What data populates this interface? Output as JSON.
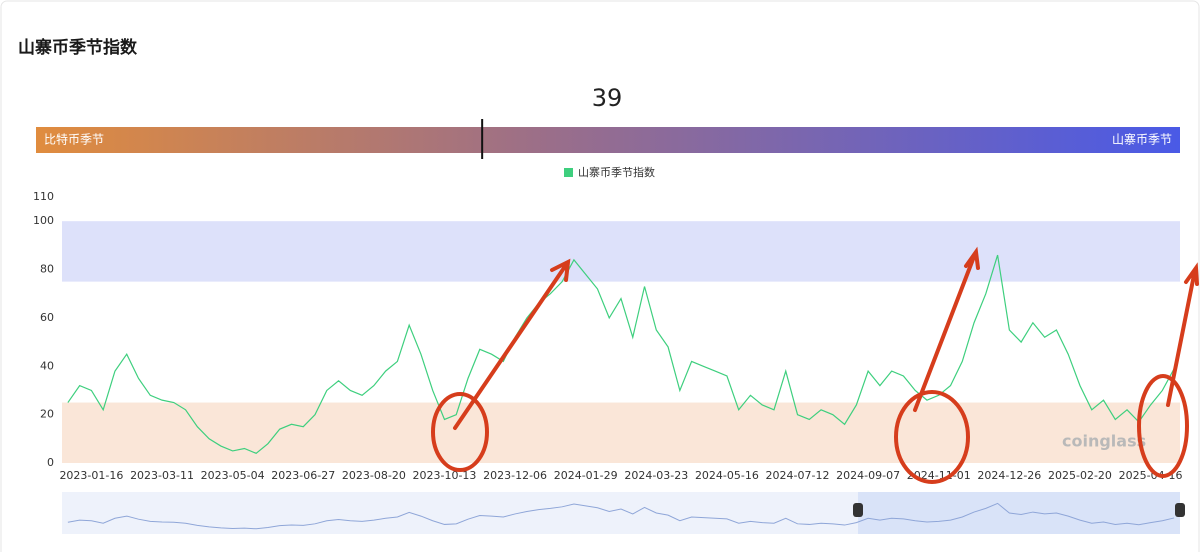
{
  "title": "山寨币季节指数",
  "gauge": {
    "value": 39,
    "range": [
      0,
      100
    ],
    "left_label": "比特币季节",
    "right_label": "山寨币季节"
  },
  "watermark": "coinglass",
  "chart_data": {
    "type": "line",
    "categories": [
      null,
      null,
      "2023-01-16",
      null,
      null,
      null,
      null,
      null,
      "2023-03-11",
      null,
      null,
      null,
      null,
      null,
      "2023-05-04",
      null,
      null,
      null,
      null,
      null,
      "2023-06-27",
      null,
      null,
      null,
      null,
      null,
      "2023-08-20",
      null,
      null,
      null,
      null,
      null,
      "2023-10-13",
      null,
      null,
      null,
      null,
      null,
      "2023-12-06",
      null,
      null,
      null,
      null,
      null,
      "2024-01-29",
      null,
      null,
      null,
      null,
      null,
      "2024-03-23",
      null,
      null,
      null,
      null,
      null,
      "2024-05-16",
      null,
      null,
      null,
      null,
      null,
      "2024-07-12",
      null,
      null,
      null,
      null,
      null,
      "2024-09-07",
      null,
      null,
      null,
      null,
      null,
      "2024-11-01",
      null,
      null,
      null,
      null,
      null,
      "2024-12-26",
      null,
      null,
      null,
      null,
      null,
      "2025-02-20",
      null,
      null,
      null,
      null,
      null,
      "2025-04-16",
      null,
      null
    ],
    "series": [
      {
        "name": "山寨币季节指数",
        "color": "#3ecf7e",
        "values": [
          25,
          32,
          30,
          22,
          38,
          45,
          35,
          28,
          26,
          25,
          22,
          15,
          10,
          7,
          5,
          6,
          4,
          8,
          14,
          16,
          15,
          20,
          30,
          34,
          30,
          28,
          32,
          38,
          42,
          57,
          45,
          30,
          18,
          20,
          35,
          47,
          45,
          42,
          52,
          60,
          66,
          70,
          75,
          84,
          78,
          72,
          60,
          68,
          52,
          73,
          55,
          48,
          30,
          42,
          40,
          38,
          36,
          22,
          28,
          24,
          22,
          38,
          20,
          18,
          22,
          20,
          16,
          24,
          38,
          32,
          38,
          36,
          30,
          26,
          28,
          32,
          42,
          58,
          70,
          86,
          55,
          50,
          58,
          52,
          55,
          45,
          32,
          22,
          26,
          18,
          22,
          17,
          24,
          30,
          39
        ]
      }
    ],
    "ylim": [
      0,
      110
    ],
    "yticks": [
      0,
      20,
      40,
      60,
      80,
      100,
      110
    ],
    "bands": [
      {
        "from": 75,
        "to": 100,
        "color": "#dde1fa"
      },
      {
        "from": 0,
        "to": 25,
        "color": "#fae6d8"
      }
    ],
    "grid": false
  }
}
